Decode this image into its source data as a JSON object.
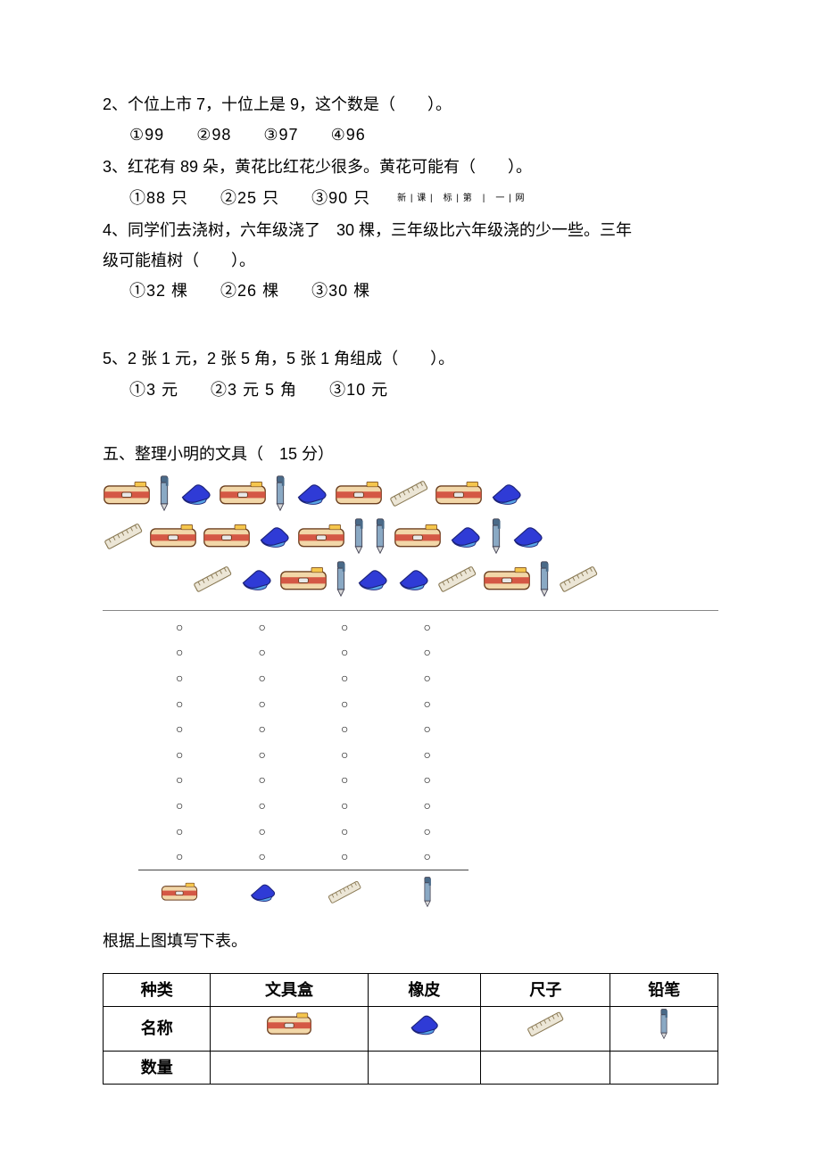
{
  "q2": {
    "text": "2、个位上市 7，十位上是 9，这个数是（　　）。",
    "opts": [
      "①99",
      "②98",
      "③97",
      "④96"
    ]
  },
  "q3": {
    "text": "3、红花有 89 朵，黄花比红花少很多。黄花可能有（　　）。",
    "opts": [
      "①88 只",
      "②25 只",
      "③90 只"
    ],
    "tiny": "新 | 课 |　标 | 第　|　一 | 网"
  },
  "q4": {
    "line1": "4、同学们去浇树，六年级浇了　30 棵，三年级比六年级浇的少一些。三年",
    "line2": "级可能植树（　　）。",
    "opts": [
      "①32 棵",
      "②26 棵",
      "③30 棵"
    ]
  },
  "q5": {
    "text": "5、2 张 1 元，2 张 5 角，5 张 1 角组成（　　）。",
    "opts": [
      "①3 元",
      "②3 元 5 角",
      "③10 元"
    ]
  },
  "sec5": {
    "title": "五、整理小明的文具（　15 分）",
    "caption": "根据上图填写下表。"
  },
  "icons": {
    "box": {
      "name": "pencil-box-icon",
      "body": "#f2d7a8",
      "band": "#d04a3a",
      "clasp": "#e8e8e8",
      "outline": "#6b3f1f"
    },
    "pen": {
      "name": "pen-icon",
      "barrel": "#8aa9c4",
      "cap": "#4a6a88",
      "tip": "#d8d8d8",
      "outline": "#445"
    },
    "eraser": {
      "name": "eraser-icon",
      "top": "#2f3bd6",
      "base": "#5aa6e6",
      "outline": "#1c237a"
    },
    "ruler": {
      "name": "ruler-icon",
      "fill": "#ece6d6",
      "outline": "#8a7a55"
    }
  },
  "rows": [
    [
      "box",
      "pen",
      "eraser",
      "box",
      "pen",
      "eraser",
      "box",
      "ruler",
      "box",
      "eraser"
    ],
    [
      "ruler",
      "box",
      "box",
      "eraser",
      "box",
      "pen",
      "pen",
      "box",
      "eraser",
      "pen",
      "eraser"
    ],
    [
      "ruler",
      "eraser",
      "box",
      "pen",
      "eraser",
      "eraser",
      "ruler",
      "box",
      "pen",
      "ruler"
    ]
  ],
  "tally": {
    "rows": 10,
    "cols": 4,
    "mark": "○",
    "icons": [
      "box",
      "eraser",
      "ruler",
      "pen"
    ]
  },
  "table": {
    "headers": [
      "种类",
      "文具盒",
      "橡皮",
      "尺子",
      "铅笔"
    ],
    "row1_label": "名称",
    "row1_icons": [
      "box",
      "eraser",
      "ruler",
      "pen"
    ],
    "row2_label": "数量"
  },
  "colors": {
    "text": "#000000",
    "bg": "#ffffff",
    "rule": "#888888"
  }
}
